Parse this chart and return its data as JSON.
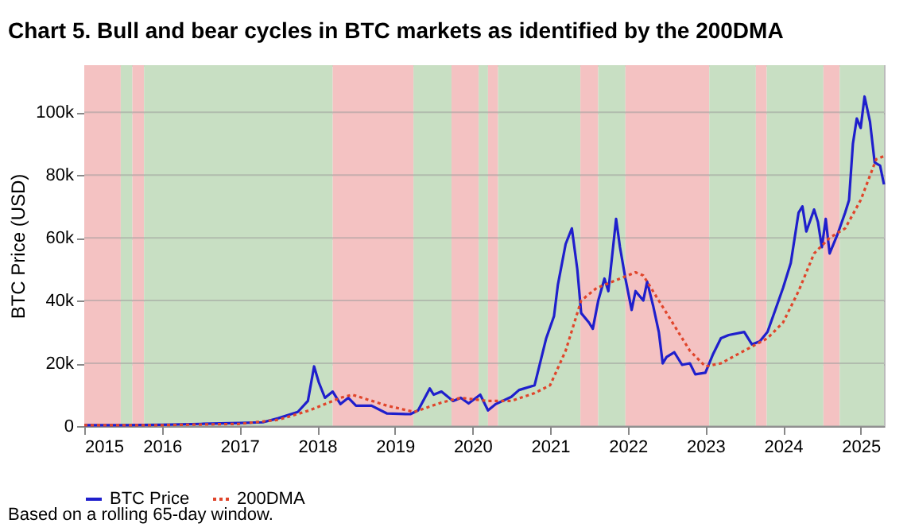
{
  "chart_data": {
    "type": "line",
    "title": "Chart 5. Bull and bear cycles in BTC markets as identified by the 200DMA",
    "ylabel": "BTC Price (USD)",
    "xlim": [
      2015,
      2025.3
    ],
    "xticks": [
      2015,
      2016,
      2017,
      2018,
      2019,
      2020,
      2021,
      2022,
      2023,
      2024,
      2025
    ],
    "ylim": [
      0,
      115000
    ],
    "yticks": [
      {
        "value": 0,
        "label": "0"
      },
      {
        "value": 20000,
        "label": "20k"
      },
      {
        "value": 40000,
        "label": "40k"
      },
      {
        "value": 60000,
        "label": "60k"
      },
      {
        "value": 80000,
        "label": "80k"
      },
      {
        "value": 100000,
        "label": "100k"
      }
    ],
    "grid": "y",
    "legend": "bottom",
    "series": [
      {
        "name": "BTC Price",
        "color": "#1f1fcc",
        "line_style": "solid",
        "x": [
          2015,
          2015.5,
          2016,
          2016.5,
          2017,
          2017.3,
          2017.5,
          2017.75,
          2017.88,
          2017.96,
          2018.02,
          2018.1,
          2018.2,
          2018.3,
          2018.4,
          2018.5,
          2018.7,
          2018.9,
          2019.2,
          2019.3,
          2019.45,
          2019.5,
          2019.6,
          2019.75,
          2019.85,
          2019.95,
          2020.1,
          2020.2,
          2020.3,
          2020.5,
          2020.6,
          2020.8,
          2020.95,
          2021.05,
          2021.1,
          2021.2,
          2021.28,
          2021.35,
          2021.4,
          2021.5,
          2021.55,
          2021.62,
          2021.7,
          2021.75,
          2021.85,
          2021.9,
          2021.97,
          2022.05,
          2022.1,
          2022.2,
          2022.25,
          2022.33,
          2022.4,
          2022.45,
          2022.5,
          2022.6,
          2022.7,
          2022.8,
          2022.87,
          2023.0,
          2023.1,
          2023.2,
          2023.3,
          2023.5,
          2023.6,
          2023.7,
          2023.8,
          2023.9,
          2024.0,
          2024.1,
          2024.2,
          2024.25,
          2024.3,
          2024.4,
          2024.45,
          2024.5,
          2024.55,
          2024.6,
          2024.7,
          2024.8,
          2024.85,
          2024.9,
          2024.95,
          2025.0,
          2025.05,
          2025.12,
          2025.18,
          2025.25,
          2025.3
        ],
        "values": [
          300,
          300,
          400,
          700,
          1000,
          1200,
          2500,
          4500,
          8000,
          19000,
          14000,
          9000,
          11000,
          7000,
          9000,
          6500,
          6500,
          4000,
          3800,
          5000,
          12000,
          10000,
          11000,
          8000,
          9000,
          7200,
          10000,
          5000,
          7000,
          9300,
          11500,
          13000,
          28000,
          35000,
          45000,
          58000,
          63000,
          50000,
          36000,
          33000,
          31000,
          40000,
          47000,
          43000,
          66000,
          57000,
          47000,
          37000,
          43000,
          40000,
          46000,
          38000,
          30000,
          20000,
          22000,
          23500,
          19500,
          20000,
          16500,
          17000,
          23000,
          28000,
          29000,
          30000,
          26000,
          27000,
          30000,
          37000,
          44000,
          52000,
          68000,
          70000,
          62000,
          69000,
          65000,
          57000,
          66000,
          55000,
          61000,
          68000,
          72000,
          90000,
          98000,
          95000,
          105000,
          97000,
          84000,
          83000,
          77000
        ]
      },
      {
        "name": "200DMA",
        "color": "#e0452b",
        "line_style": "dotted",
        "x": [
          2015,
          2016,
          2016.5,
          2017,
          2017.5,
          2017.9,
          2018.3,
          2018.45,
          2018.9,
          2019.25,
          2019.6,
          2019.85,
          2020.2,
          2020.5,
          2020.8,
          2021.0,
          2021.2,
          2021.4,
          2021.6,
          2021.9,
          2022.1,
          2022.2,
          2022.4,
          2022.6,
          2022.8,
          2023.0,
          2023.2,
          2023.5,
          2023.8,
          2024.0,
          2024.2,
          2024.4,
          2024.6,
          2024.8,
          2025.0,
          2025.2,
          2025.3
        ],
        "values": [
          300,
          300,
          500,
          700,
          2000,
          5000,
          9000,
          10000,
          6500,
          4500,
          7500,
          9000,
          8000,
          8000,
          10500,
          13000,
          24000,
          40000,
          44000,
          47000,
          49000,
          48000,
          40000,
          32000,
          24000,
          19000,
          20000,
          24000,
          28000,
          33000,
          43000,
          55000,
          60000,
          63000,
          72000,
          85000,
          86000
        ]
      }
    ],
    "bands": [
      {
        "axis": "x",
        "from": 2015,
        "to": 2015.47,
        "color": "#f4c2c2"
      },
      {
        "axis": "x",
        "from": 2015.47,
        "to": 2015.62,
        "color": "#c8dfc3"
      },
      {
        "axis": "x",
        "from": 2015.62,
        "to": 2015.77,
        "color": "#f4c2c2"
      },
      {
        "axis": "x",
        "from": 2015.77,
        "to": 2018.2,
        "color": "#c8dfc3"
      },
      {
        "axis": "x",
        "from": 2018.2,
        "to": 2019.24,
        "color": "#f4c2c2"
      },
      {
        "axis": "x",
        "from": 2019.24,
        "to": 2019.73,
        "color": "#c8dfc3"
      },
      {
        "axis": "x",
        "from": 2019.73,
        "to": 2020.08,
        "color": "#f4c2c2"
      },
      {
        "axis": "x",
        "from": 2020.08,
        "to": 2020.2,
        "color": "#c8dfc3"
      },
      {
        "axis": "x",
        "from": 2020.2,
        "to": 2020.33,
        "color": "#f4c2c2"
      },
      {
        "axis": "x",
        "from": 2020.33,
        "to": 2021.39,
        "color": "#c8dfc3"
      },
      {
        "axis": "x",
        "from": 2021.39,
        "to": 2021.62,
        "color": "#f4c2c2"
      },
      {
        "axis": "x",
        "from": 2021.62,
        "to": 2021.97,
        "color": "#c8dfc3"
      },
      {
        "axis": "x",
        "from": 2021.97,
        "to": 2023.05,
        "color": "#f4c2c2"
      },
      {
        "axis": "x",
        "from": 2023.05,
        "to": 2023.65,
        "color": "#c8dfc3"
      },
      {
        "axis": "x",
        "from": 2023.65,
        "to": 2023.79,
        "color": "#f4c2c2"
      },
      {
        "axis": "x",
        "from": 2023.79,
        "to": 2024.52,
        "color": "#c8dfc3"
      },
      {
        "axis": "x",
        "from": 2024.52,
        "to": 2024.73,
        "color": "#f4c2c2"
      },
      {
        "axis": "x",
        "from": 2024.73,
        "to": 2025.3,
        "color": "#c8dfc3"
      }
    ],
    "annotations": [
      "Based on a rolling 65-day window."
    ]
  }
}
